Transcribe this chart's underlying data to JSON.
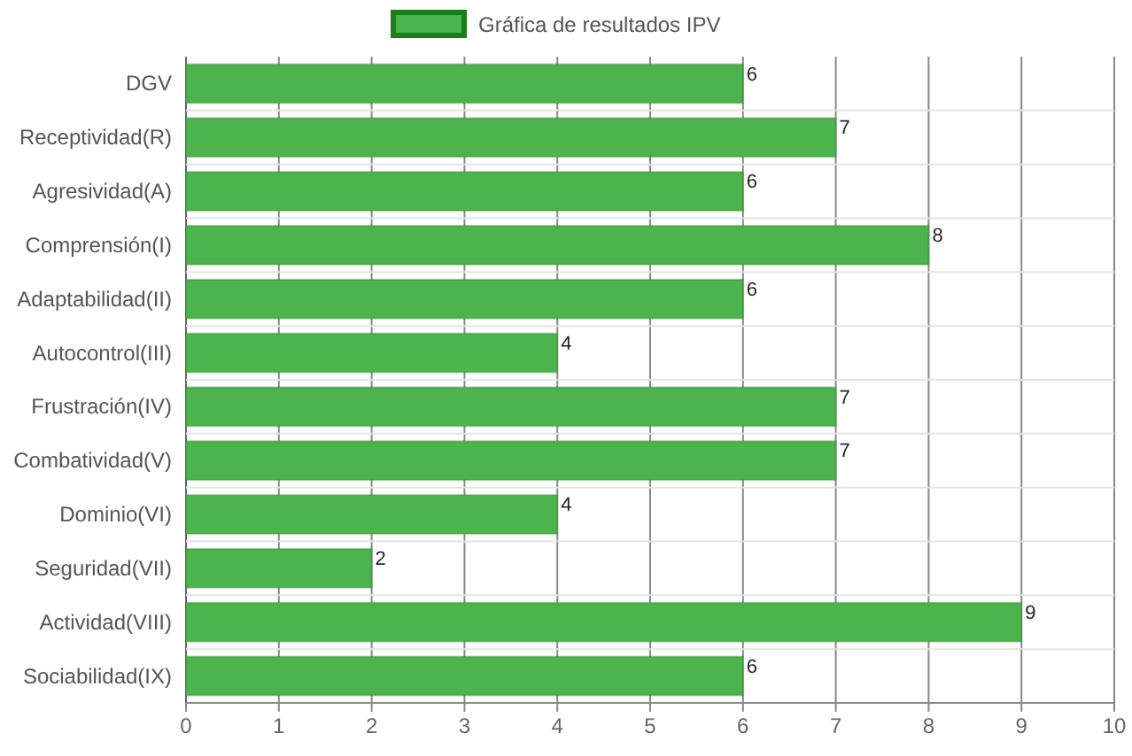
{
  "chart_data": {
    "type": "bar",
    "orientation": "horizontal",
    "categories": [
      "DGV",
      "Receptividad(R)",
      "Agresividad(A)",
      "Comprensión(I)",
      "Adaptabilidad(II)",
      "Autocontrol(III)",
      "Frustración(IV)",
      "Combatividad(V)",
      "Dominio(VI)",
      "Seguridad(VII)",
      "Actividad(VIII)",
      "Sociabilidad(IX)"
    ],
    "series": [
      {
        "name": "Gráfica de resultados IPV",
        "color": "#4db34d",
        "values": [
          6,
          7,
          6,
          8,
          6,
          4,
          7,
          7,
          4,
          2,
          9,
          6
        ]
      }
    ],
    "xlim": [
      0,
      10
    ],
    "xticks": [
      0,
      1,
      2,
      3,
      4,
      5,
      6,
      7,
      8,
      9,
      10
    ],
    "grid": true,
    "legend": "top",
    "data_labels": true
  }
}
